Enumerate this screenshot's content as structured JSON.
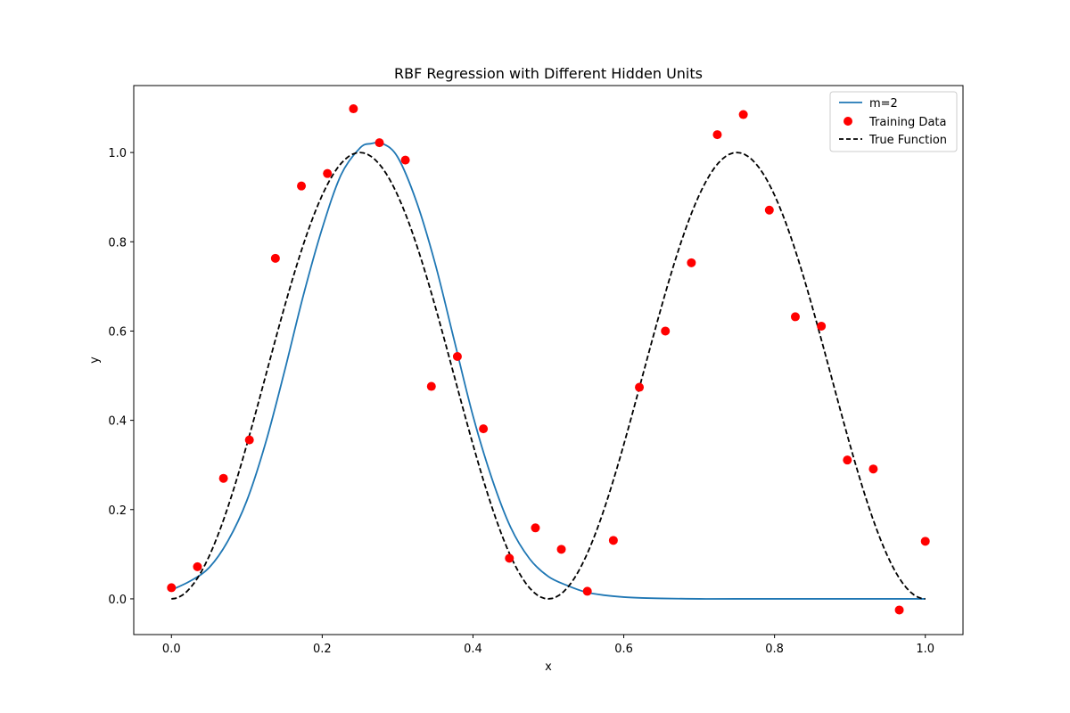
{
  "chart_data": {
    "type": "line",
    "title": "RBF Regression with Different Hidden Units",
    "xlabel": "x",
    "ylabel": "y",
    "xlim": [
      -0.05,
      1.05
    ],
    "ylim": [
      -0.08,
      1.15
    ],
    "grid": false,
    "legend_position": "top-right",
    "x_ticks": [
      0.0,
      0.2,
      0.4,
      0.6,
      0.8,
      1.0
    ],
    "x_tick_labels": [
      "0.0",
      "0.2",
      "0.4",
      "0.6",
      "0.8",
      "1.0"
    ],
    "y_ticks": [
      0.0,
      0.2,
      0.4,
      0.6,
      0.8,
      1.0
    ],
    "y_tick_labels": [
      "0.0",
      "0.2",
      "0.4",
      "0.6",
      "0.8",
      "1.0"
    ],
    "series": [
      {
        "name": "m=2",
        "kind": "line",
        "style": "solid",
        "color": "#1f77b4",
        "x": [
          0.0,
          0.025,
          0.05,
          0.075,
          0.1,
          0.125,
          0.15,
          0.175,
          0.2,
          0.225,
          0.25,
          0.265,
          0.28,
          0.3,
          0.325,
          0.35,
          0.375,
          0.4,
          0.425,
          0.45,
          0.475,
          0.5,
          0.525,
          0.55,
          0.575,
          0.6,
          0.625,
          0.65,
          0.7,
          0.75,
          1.0
        ],
        "y": [
          0.02,
          0.04,
          0.07,
          0.13,
          0.22,
          0.35,
          0.51,
          0.68,
          0.83,
          0.95,
          1.01,
          1.02,
          1.02,
          0.99,
          0.89,
          0.75,
          0.58,
          0.41,
          0.27,
          0.16,
          0.09,
          0.05,
          0.03,
          0.015,
          0.008,
          0.004,
          0.002,
          0.001,
          0.0,
          0.0,
          0.0
        ]
      },
      {
        "name": "Training Data",
        "kind": "scatter",
        "color": "#ff0000",
        "x": [
          0.0,
          0.0345,
          0.069,
          0.1034,
          0.1379,
          0.1724,
          0.2069,
          0.2414,
          0.2759,
          0.3103,
          0.3448,
          0.3793,
          0.4138,
          0.4483,
          0.4828,
          0.5172,
          0.5517,
          0.5862,
          0.6207,
          0.6552,
          0.6897,
          0.7241,
          0.7586,
          0.7931,
          0.8276,
          0.8621,
          0.8966,
          0.931,
          0.9655,
          1.0
        ],
        "y": [
          0.025,
          0.072,
          0.27,
          0.356,
          0.763,
          0.925,
          0.953,
          1.098,
          1.022,
          0.983,
          0.476,
          0.543,
          0.381,
          0.091,
          0.159,
          0.111,
          0.017,
          0.131,
          0.474,
          0.6,
          0.753,
          1.04,
          1.085,
          0.871,
          0.632,
          0.611,
          0.311,
          0.291,
          -0.025,
          0.129
        ]
      },
      {
        "name": "True Function",
        "kind": "line",
        "style": "dashed",
        "color": "#000000",
        "function": "sin^2(2*pi*x)"
      }
    ]
  }
}
